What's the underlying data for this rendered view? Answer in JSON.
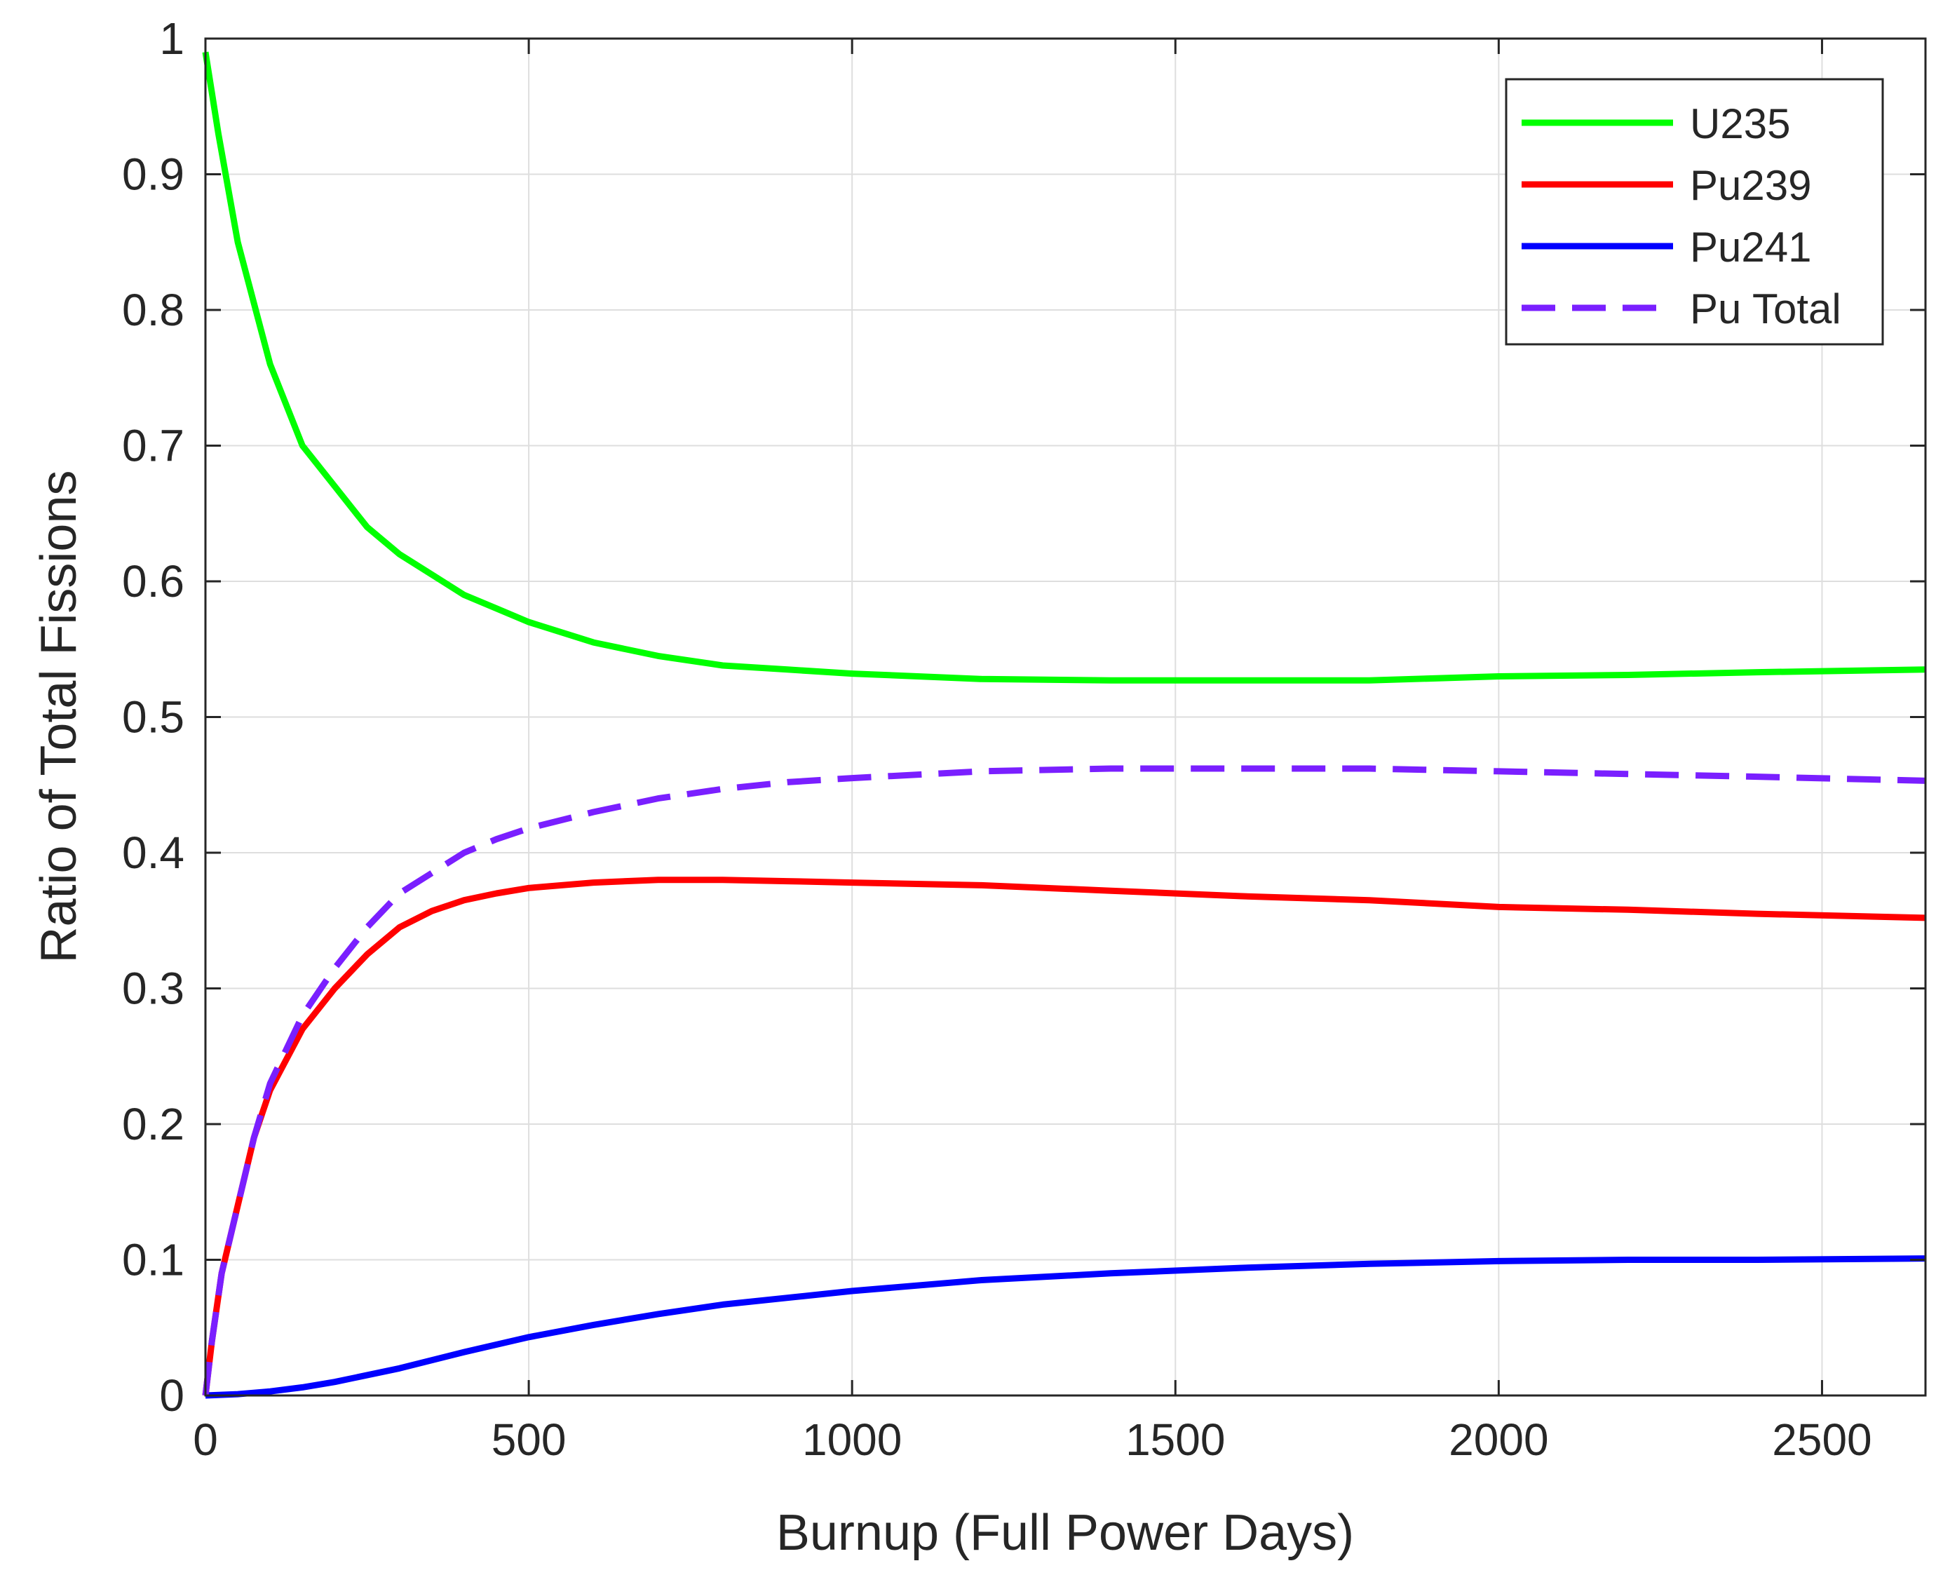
{
  "chart_data": {
    "type": "line",
    "title": "",
    "xlabel": "Burnup (Full Power Days)",
    "ylabel": "Ratio of Total Fissions",
    "xlim": [
      0,
      2660
    ],
    "ylim": [
      0,
      1
    ],
    "xticks": [
      0,
      500,
      1000,
      1500,
      2000,
      2500
    ],
    "yticks": [
      0,
      0.1,
      0.2,
      0.3,
      0.4,
      0.5,
      0.6,
      0.7,
      0.8,
      0.9,
      1
    ],
    "xtick_labels": [
      "0",
      "500",
      "1000",
      "1500",
      "2000",
      "2500"
    ],
    "ytick_labels": [
      "0",
      "0.1",
      "0.2",
      "0.3",
      "0.4",
      "0.5",
      "0.6",
      "0.7",
      "0.8",
      "0.9",
      "1"
    ],
    "grid": true,
    "legend_position": "top-right",
    "series": [
      {
        "name": "U235",
        "color": "#00ff00",
        "style": "solid",
        "x": [
          0,
          20,
          50,
          100,
          150,
          200,
          250,
          300,
          350,
          400,
          450,
          500,
          600,
          700,
          800,
          900,
          1000,
          1200,
          1400,
          1600,
          1800,
          2000,
          2200,
          2400,
          2660
        ],
        "y": [
          0.99,
          0.93,
          0.85,
          0.76,
          0.7,
          0.67,
          0.64,
          0.62,
          0.605,
          0.59,
          0.58,
          0.57,
          0.555,
          0.545,
          0.538,
          0.535,
          0.532,
          0.528,
          0.527,
          0.527,
          0.527,
          0.53,
          0.531,
          0.533,
          0.535
        ]
      },
      {
        "name": "Pu239",
        "color": "#ff0000",
        "style": "solid",
        "x": [
          0,
          10,
          25,
          50,
          75,
          100,
          150,
          200,
          250,
          300,
          350,
          400,
          450,
          500,
          600,
          700,
          800,
          900,
          1000,
          1200,
          1400,
          1600,
          1800,
          2000,
          2200,
          2400,
          2660
        ],
        "y": [
          0.0,
          0.04,
          0.09,
          0.14,
          0.19,
          0.225,
          0.27,
          0.3,
          0.325,
          0.345,
          0.357,
          0.365,
          0.37,
          0.374,
          0.378,
          0.38,
          0.38,
          0.379,
          0.378,
          0.376,
          0.372,
          0.368,
          0.365,
          0.36,
          0.358,
          0.355,
          0.352
        ]
      },
      {
        "name": "Pu241",
        "color": "#0000ff",
        "style": "solid",
        "x": [
          0,
          50,
          100,
          150,
          200,
          300,
          400,
          500,
          600,
          700,
          800,
          900,
          1000,
          1200,
          1400,
          1600,
          1800,
          2000,
          2200,
          2400,
          2660
        ],
        "y": [
          0.0,
          0.001,
          0.003,
          0.006,
          0.01,
          0.02,
          0.032,
          0.043,
          0.052,
          0.06,
          0.067,
          0.072,
          0.077,
          0.085,
          0.09,
          0.094,
          0.097,
          0.099,
          0.1,
          0.1,
          0.101
        ]
      },
      {
        "name": "Pu Total",
        "color": "#7a1fff",
        "style": "dashed",
        "x": [
          0,
          10,
          25,
          50,
          75,
          100,
          150,
          200,
          250,
          300,
          350,
          400,
          450,
          500,
          600,
          700,
          800,
          900,
          1000,
          1200,
          1400,
          1600,
          1800,
          2000,
          2200,
          2400,
          2660
        ],
        "y": [
          0.0,
          0.04,
          0.09,
          0.14,
          0.19,
          0.23,
          0.28,
          0.315,
          0.345,
          0.37,
          0.385,
          0.4,
          0.41,
          0.418,
          0.43,
          0.44,
          0.447,
          0.452,
          0.455,
          0.46,
          0.462,
          0.462,
          0.462,
          0.46,
          0.458,
          0.456,
          0.453
        ]
      }
    ]
  }
}
